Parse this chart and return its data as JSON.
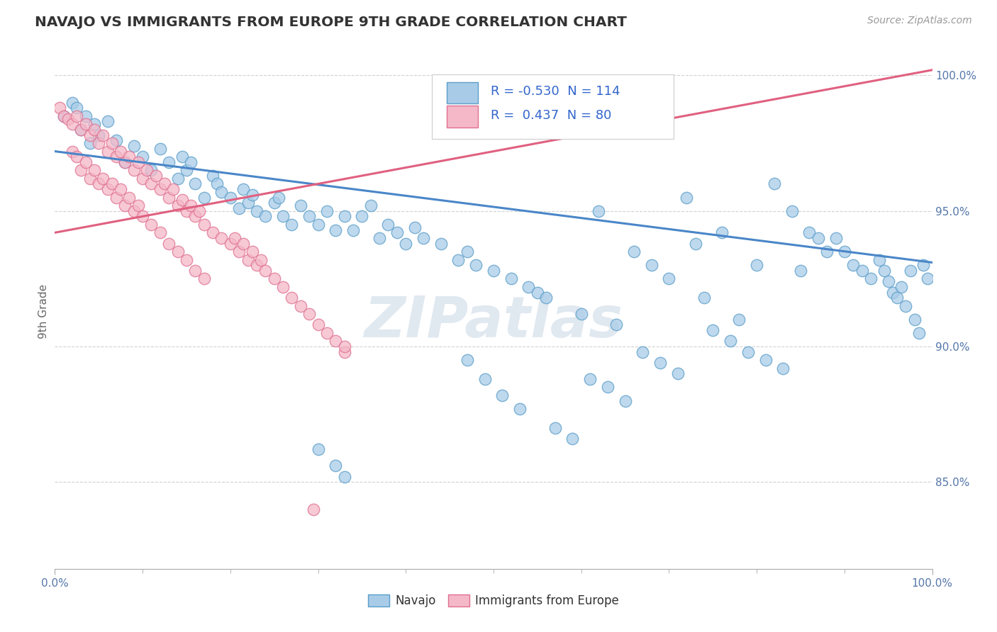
{
  "title": "NAVAJO VS IMMIGRANTS FROM EUROPE 9TH GRADE CORRELATION CHART",
  "source_text": "Source: ZipAtlas.com",
  "ylabel": "9th Grade",
  "R_blue": -0.53,
  "N_blue": 114,
  "R_pink": 0.437,
  "N_pink": 80,
  "blue_color": "#a8cce8",
  "pink_color": "#f4b8c8",
  "blue_edge_color": "#5b9ec9",
  "pink_edge_color": "#e07090",
  "blue_line_color": "#4a86c8",
  "pink_line_color": "#e06080",
  "legend_label_blue": "Navajo",
  "legend_label_pink": "Immigrants from Europe",
  "watermark": "ZIPatlas",
  "x_range": [
    0.0,
    1.0
  ],
  "y_range": [
    0.818,
    1.008
  ],
  "y_ticks": [
    0.85,
    0.9,
    0.95,
    1.0
  ],
  "y_tick_labels": [
    "85.0%",
    "90.0%",
    "95.0%",
    "100.0%"
  ],
  "blue_line_x0": 0.0,
  "blue_line_y0": 0.972,
  "blue_line_x1": 1.0,
  "blue_line_y1": 0.931,
  "pink_line_x0": 0.0,
  "pink_line_y0": 0.942,
  "pink_line_x1": 1.0,
  "pink_line_y1": 1.002,
  "blue_x": [
    0.01,
    0.02,
    0.025,
    0.03,
    0.035,
    0.04,
    0.045,
    0.05,
    0.06,
    0.07,
    0.08,
    0.09,
    0.1,
    0.11,
    0.12,
    0.13,
    0.14,
    0.145,
    0.15,
    0.155,
    0.16,
    0.17,
    0.18,
    0.185,
    0.19,
    0.2,
    0.21,
    0.215,
    0.22,
    0.225,
    0.23,
    0.24,
    0.25,
    0.255,
    0.26,
    0.27,
    0.28,
    0.29,
    0.3,
    0.31,
    0.32,
    0.33,
    0.34,
    0.35,
    0.36,
    0.37,
    0.38,
    0.39,
    0.4,
    0.41,
    0.42,
    0.44,
    0.46,
    0.47,
    0.48,
    0.5,
    0.52,
    0.54,
    0.55,
    0.56,
    0.6,
    0.62,
    0.64,
    0.66,
    0.68,
    0.7,
    0.72,
    0.73,
    0.74,
    0.76,
    0.78,
    0.8,
    0.82,
    0.84,
    0.85,
    0.86,
    0.87,
    0.88,
    0.89,
    0.9,
    0.91,
    0.92,
    0.93,
    0.94,
    0.945,
    0.95,
    0.955,
    0.96,
    0.965,
    0.97,
    0.975,
    0.98,
    0.985,
    0.99,
    0.995,
    0.75,
    0.77,
    0.79,
    0.81,
    0.83,
    0.61,
    0.63,
    0.65,
    0.67,
    0.69,
    0.71,
    0.47,
    0.49,
    0.51,
    0.53,
    0.57,
    0.59,
    0.3,
    0.32,
    0.33
  ],
  "blue_y": [
    0.985,
    0.99,
    0.988,
    0.98,
    0.985,
    0.975,
    0.982,
    0.978,
    0.983,
    0.976,
    0.968,
    0.974,
    0.97,
    0.965,
    0.973,
    0.968,
    0.962,
    0.97,
    0.965,
    0.968,
    0.96,
    0.955,
    0.963,
    0.96,
    0.957,
    0.955,
    0.951,
    0.958,
    0.953,
    0.956,
    0.95,
    0.948,
    0.953,
    0.955,
    0.948,
    0.945,
    0.952,
    0.948,
    0.945,
    0.95,
    0.943,
    0.948,
    0.943,
    0.948,
    0.952,
    0.94,
    0.945,
    0.942,
    0.938,
    0.944,
    0.94,
    0.938,
    0.932,
    0.935,
    0.93,
    0.928,
    0.925,
    0.922,
    0.92,
    0.918,
    0.912,
    0.95,
    0.908,
    0.935,
    0.93,
    0.925,
    0.955,
    0.938,
    0.918,
    0.942,
    0.91,
    0.93,
    0.96,
    0.95,
    0.928,
    0.942,
    0.94,
    0.935,
    0.94,
    0.935,
    0.93,
    0.928,
    0.925,
    0.932,
    0.928,
    0.924,
    0.92,
    0.918,
    0.922,
    0.915,
    0.928,
    0.91,
    0.905,
    0.93,
    0.925,
    0.906,
    0.902,
    0.898,
    0.895,
    0.892,
    0.888,
    0.885,
    0.88,
    0.898,
    0.894,
    0.89,
    0.895,
    0.888,
    0.882,
    0.877,
    0.87,
    0.866,
    0.862,
    0.856,
    0.852
  ],
  "pink_x": [
    0.005,
    0.01,
    0.015,
    0.02,
    0.025,
    0.03,
    0.035,
    0.04,
    0.045,
    0.05,
    0.055,
    0.06,
    0.065,
    0.07,
    0.075,
    0.08,
    0.085,
    0.09,
    0.095,
    0.1,
    0.105,
    0.11,
    0.115,
    0.12,
    0.125,
    0.13,
    0.135,
    0.14,
    0.145,
    0.15,
    0.155,
    0.16,
    0.165,
    0.17,
    0.18,
    0.19,
    0.2,
    0.205,
    0.21,
    0.215,
    0.22,
    0.225,
    0.23,
    0.235,
    0.24,
    0.25,
    0.26,
    0.27,
    0.28,
    0.29,
    0.3,
    0.31,
    0.32,
    0.33,
    0.02,
    0.025,
    0.03,
    0.035,
    0.04,
    0.045,
    0.05,
    0.055,
    0.06,
    0.065,
    0.07,
    0.075,
    0.08,
    0.085,
    0.09,
    0.095,
    0.1,
    0.11,
    0.12,
    0.13,
    0.14,
    0.15,
    0.16,
    0.17,
    0.295,
    0.33
  ],
  "pink_y": [
    0.988,
    0.985,
    0.984,
    0.982,
    0.985,
    0.98,
    0.982,
    0.978,
    0.98,
    0.975,
    0.978,
    0.972,
    0.975,
    0.97,
    0.972,
    0.968,
    0.97,
    0.965,
    0.968,
    0.962,
    0.965,
    0.96,
    0.963,
    0.958,
    0.96,
    0.955,
    0.958,
    0.952,
    0.954,
    0.95,
    0.952,
    0.948,
    0.95,
    0.945,
    0.942,
    0.94,
    0.938,
    0.94,
    0.935,
    0.938,
    0.932,
    0.935,
    0.93,
    0.932,
    0.928,
    0.925,
    0.922,
    0.918,
    0.915,
    0.912,
    0.908,
    0.905,
    0.902,
    0.898,
    0.972,
    0.97,
    0.965,
    0.968,
    0.962,
    0.965,
    0.96,
    0.962,
    0.958,
    0.96,
    0.955,
    0.958,
    0.952,
    0.955,
    0.95,
    0.952,
    0.948,
    0.945,
    0.942,
    0.938,
    0.935,
    0.932,
    0.928,
    0.925,
    0.84,
    0.9
  ]
}
